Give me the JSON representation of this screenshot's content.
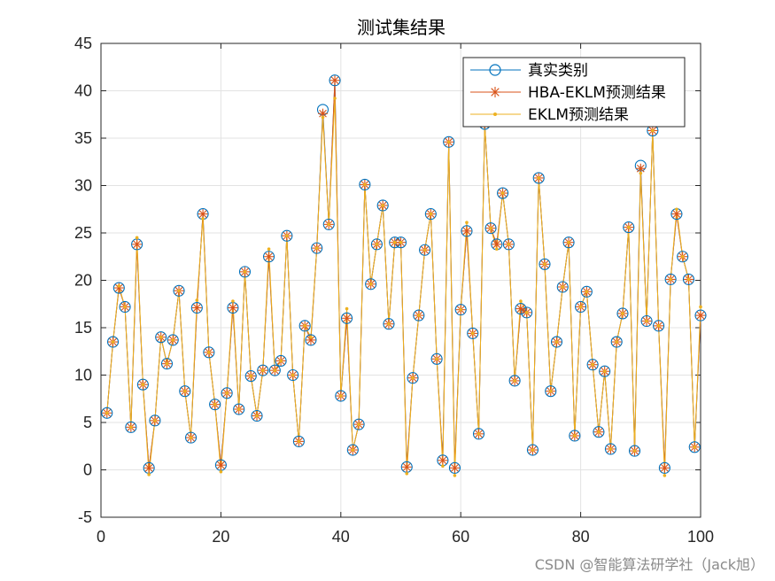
{
  "watermark": "CSDN @智能算法研学社（Jack旭）",
  "colors": {
    "true": "#0072BD",
    "hba": "#D95319",
    "eklm": "#EDB120",
    "grid": "#e3e3e3",
    "axis": "#262626"
  },
  "chart_data": {
    "type": "line",
    "title": "测试集结果",
    "xlabel": "",
    "ylabel": "",
    "xlim": [
      0,
      100
    ],
    "ylim": [
      -5,
      45
    ],
    "xticks": [
      0,
      20,
      40,
      60,
      80,
      100
    ],
    "yticks": [
      -5,
      0,
      5,
      10,
      15,
      20,
      25,
      30,
      35,
      40,
      45
    ],
    "grid": true,
    "legend_position": "top-right",
    "legend": [
      "真实类别",
      "HBA-EKLM预测结果",
      "EKLM预测结果"
    ],
    "x": [
      1,
      2,
      3,
      4,
      5,
      6,
      7,
      8,
      9,
      10,
      11,
      12,
      13,
      14,
      15,
      16,
      17,
      18,
      19,
      20,
      21,
      22,
      23,
      24,
      25,
      26,
      27,
      28,
      29,
      30,
      31,
      32,
      33,
      34,
      35,
      36,
      37,
      38,
      39,
      40,
      41,
      42,
      43,
      44,
      45,
      46,
      47,
      48,
      49,
      50,
      51,
      52,
      53,
      54,
      55,
      56,
      57,
      58,
      59,
      60,
      61,
      62,
      63,
      64,
      65,
      66,
      67,
      68,
      69,
      70,
      71,
      72,
      73,
      74,
      75,
      76,
      77,
      78,
      79,
      80,
      81,
      82,
      83,
      84,
      85,
      86,
      87,
      88,
      89,
      90,
      91,
      92,
      93,
      94,
      95,
      96,
      97,
      98,
      99,
      100
    ],
    "series": [
      {
        "name": "真实类别",
        "marker": "circle",
        "values": [
          6,
          13.5,
          19.2,
          17.2,
          4.5,
          23.8,
          9,
          0.2,
          5.2,
          14,
          11.2,
          13.7,
          18.9,
          8.3,
          3.4,
          17.1,
          27,
          12.4,
          6.9,
          0.5,
          8.1,
          17.1,
          6.4,
          20.9,
          9.9,
          5.7,
          10.5,
          22.5,
          10.5,
          11.5,
          24.7,
          10,
          3,
          15.2,
          13.7,
          23.4,
          38,
          25.9,
          41.1,
          7.8,
          16,
          2.1,
          4.8,
          30.1,
          19.6,
          23.8,
          27.9,
          15.4,
          24,
          24,
          0.3,
          9.7,
          16.3,
          23.2,
          27,
          11.7,
          1,
          34.6,
          0.2,
          16.9,
          25.2,
          14.4,
          3.8,
          36.5,
          25.5,
          23.8,
          29.2,
          23.8,
          9.4,
          17,
          16.6,
          2.1,
          30.8,
          21.7,
          8.3,
          13.5,
          19.3,
          24,
          3.6,
          17.2,
          18.8,
          11.1,
          4,
          10.4,
          2.2,
          13.5,
          16.5,
          25.6,
          2,
          32.1,
          15.7,
          35.8,
          15.2,
          0.2,
          20.1,
          27,
          22.5,
          20.1,
          2.4,
          16.3
        ]
      },
      {
        "name": "HBA-EKLM预测结果",
        "marker": "star",
        "values": [
          6,
          13.5,
          19.2,
          17.2,
          4.5,
          23.8,
          9,
          0.2,
          5.2,
          14,
          11.2,
          13.7,
          18.9,
          8.3,
          3.4,
          17.1,
          27,
          12.4,
          6.9,
          0.5,
          8.1,
          17.1,
          6.4,
          20.9,
          9.9,
          5.7,
          10.5,
          22.5,
          10.5,
          11.5,
          24.7,
          10,
          3,
          15.2,
          13.7,
          23.4,
          37.6,
          25.9,
          41.1,
          7.8,
          16,
          2.1,
          4.8,
          30.1,
          19.6,
          23.8,
          27.9,
          15.4,
          24,
          24,
          0.3,
          9.7,
          16.3,
          23.2,
          27,
          11.7,
          1,
          34.6,
          0.2,
          16.9,
          25.2,
          14.4,
          3.8,
          36.5,
          25.5,
          23.8,
          29.2,
          23.8,
          9.4,
          17,
          16.6,
          2.1,
          30.8,
          21.7,
          8.3,
          13.5,
          19.3,
          24,
          3.6,
          17.2,
          18.8,
          11.1,
          4,
          10.4,
          2.2,
          13.5,
          16.5,
          25.6,
          2,
          31.8,
          15.7,
          35.8,
          15.2,
          0.2,
          20.1,
          27,
          22.5,
          20.1,
          2.4,
          16.3
        ]
      },
      {
        "name": "EKLM预测结果",
        "marker": "dot",
        "values": [
          6,
          13.5,
          19.4,
          17.2,
          4.5,
          24.5,
          9,
          -0.5,
          5.2,
          14,
          11.2,
          13.7,
          18.9,
          8.3,
          3.4,
          17.9,
          26.5,
          12.4,
          6.9,
          -0.2,
          8.1,
          17.8,
          6.4,
          20.9,
          9.9,
          5.7,
          10.5,
          23.3,
          10.5,
          11.5,
          24.7,
          10,
          3,
          15.2,
          14,
          23.4,
          37.2,
          25.9,
          39.2,
          7.8,
          17,
          2.1,
          4.8,
          30.1,
          19.6,
          23.8,
          27.9,
          15.4,
          24,
          24,
          -0.4,
          9.7,
          16.3,
          23.2,
          27,
          11.7,
          0.4,
          34.6,
          -0.6,
          16.9,
          26.1,
          14.4,
          3.8,
          36.5,
          25.5,
          23.3,
          29.2,
          23.8,
          9.4,
          17.8,
          16.6,
          2.1,
          30.8,
          21.7,
          8.3,
          13.5,
          19.3,
          24,
          3.6,
          17.2,
          18.8,
          11.1,
          4,
          10.4,
          2.2,
          13.5,
          16.5,
          25.6,
          2,
          31.3,
          15.7,
          35.8,
          15.2,
          -0.6,
          20.1,
          27.5,
          22.5,
          20.1,
          2.4,
          17.2
        ]
      }
    ]
  }
}
